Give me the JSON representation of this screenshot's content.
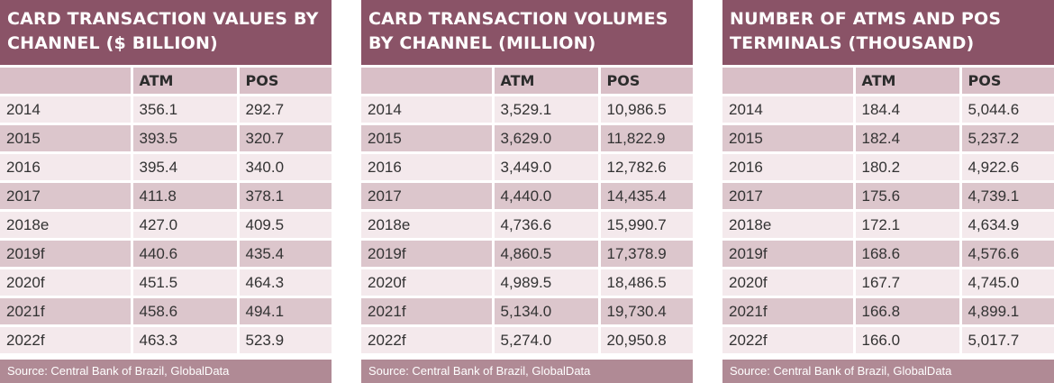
{
  "source": "Source: Central Bank of Brazil, GlobalData",
  "headers": [
    "",
    "ATM",
    "POS"
  ],
  "years": [
    "2014",
    "2015",
    "2016",
    "2017",
    "2018e",
    "2019f",
    "2020f",
    "2021f",
    "2022f"
  ],
  "tables": [
    {
      "title": "Card transaction values by channel ($ billion)",
      "atm": [
        "356.1",
        "393.5",
        "395.4",
        "411.8",
        "427.0",
        "440.6",
        "451.5",
        "458.6",
        "463.3"
      ],
      "pos": [
        "292.7",
        "320.7",
        "340.0",
        "378.1",
        "409.5",
        "435.4",
        "464.3",
        "494.1",
        "523.9"
      ]
    },
    {
      "title": "Card transaction volumes by channel (million)",
      "atm": [
        "3,529.1",
        "3,629.0",
        "3,449.0",
        "4,440.0",
        "4,736.6",
        "4,860.5",
        "4,989.5",
        "5,134.0",
        "5,274.0"
      ],
      "pos": [
        "10,986.5",
        "11,822.9",
        "12,782.6",
        "14,435.4",
        "15,990.7",
        "17,378.9",
        "18,486.5",
        "19,730.4",
        "20,950.8"
      ]
    },
    {
      "title": "Number of ATMs and POS terminals (thousand)",
      "atm": [
        "184.4",
        "182.4",
        "180.2",
        "175.6",
        "172.1",
        "168.6",
        "167.7",
        "166.8",
        "166.0"
      ],
      "pos": [
        "5,044.6",
        "5,237.2",
        "4,922.6",
        "4,739.1",
        "4,634.9",
        "4,576.6",
        "4,745.0",
        "4,899.1",
        "5,017.7"
      ]
    }
  ]
}
